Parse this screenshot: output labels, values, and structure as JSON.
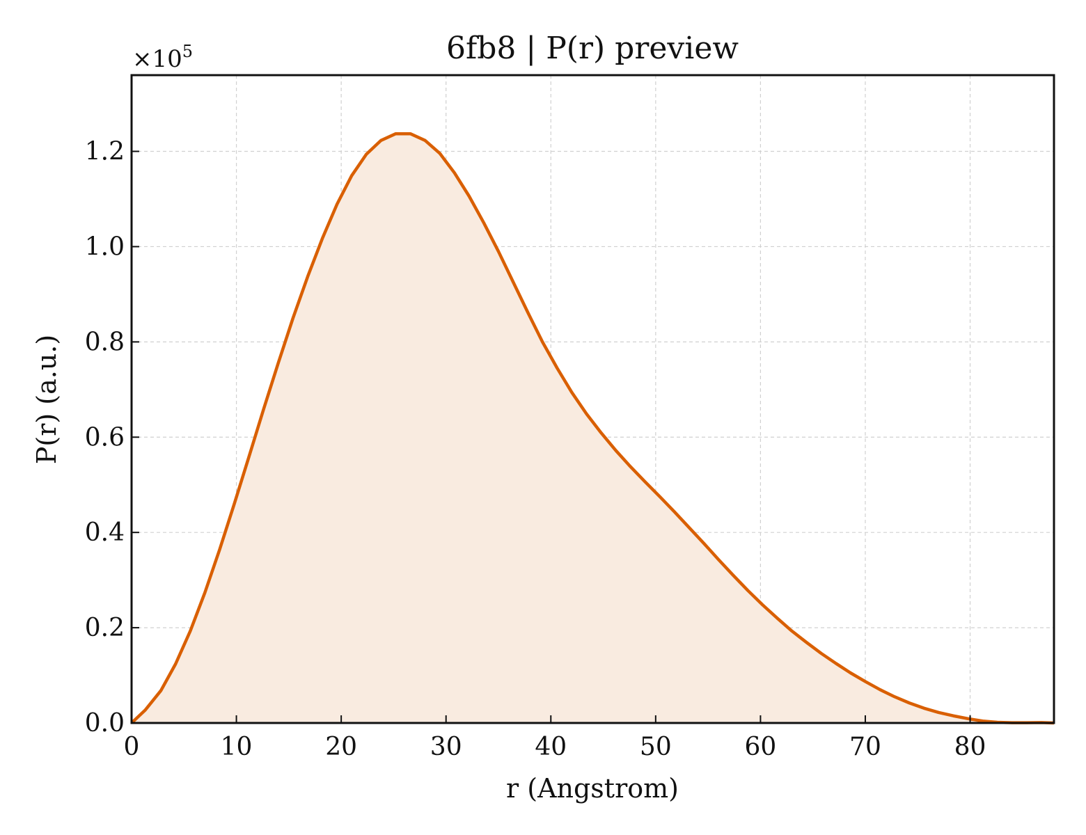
{
  "chart_data": {
    "type": "area",
    "title": "6fb8 | P(r) preview",
    "xlabel": "r (Angstrom)",
    "ylabel": "P(r) (a.u.)",
    "y_multiplier_text": "×10",
    "y_multiplier_exponent": "5",
    "xlim": [
      0,
      88
    ],
    "ylim": [
      0,
      1.36
    ],
    "xticks": [
      0,
      10,
      20,
      30,
      40,
      50,
      60,
      70,
      80
    ],
    "yticks": [
      0.0,
      0.2,
      0.4,
      0.6,
      0.8,
      1.0,
      1.2
    ],
    "xtick_labels": [
      "0",
      "10",
      "20",
      "30",
      "40",
      "50",
      "60",
      "70",
      "80"
    ],
    "ytick_labels": [
      "0.0",
      "0.2",
      "0.4",
      "0.6",
      "0.8",
      "1.0",
      "1.2"
    ],
    "grid": true,
    "colors": {
      "line": "#d95f02",
      "fill": "#f9ebe0",
      "grid": "#d0d0d0",
      "axes": "#111111"
    },
    "series": [
      {
        "x": [
          0,
          1.3,
          2.8,
          4.2,
          5.6,
          7.0,
          8.4,
          9.8,
          11.2,
          12.6,
          14.0,
          15.4,
          16.8,
          18.2,
          19.6,
          21.0,
          22.4,
          23.8,
          25.2,
          26.6,
          28.0,
          29.4,
          30.8,
          32.2,
          33.6,
          35.0,
          36.4,
          37.8,
          39.2,
          40.6,
          42.0,
          43.4,
          44.8,
          46.2,
          47.6,
          49.0,
          50.4,
          51.8,
          53.2,
          54.6,
          56.0,
          57.4,
          58.8,
          60.2,
          61.6,
          63.0,
          64.4,
          65.8,
          67.2,
          68.6,
          70.0,
          71.4,
          72.8,
          74.2,
          75.6,
          77.0,
          78.4,
          79.8,
          81.2,
          82.6,
          84.0,
          85.4,
          86.8,
          88.0
        ],
        "values": [
          0.0,
          0.027,
          0.068,
          0.124,
          0.193,
          0.274,
          0.364,
          0.46,
          0.559,
          0.659,
          0.756,
          0.85,
          0.937,
          1.017,
          1.089,
          1.149,
          1.194,
          1.223,
          1.237,
          1.237,
          1.223,
          1.196,
          1.155,
          1.106,
          1.05,
          0.99,
          0.926,
          0.862,
          0.8,
          0.745,
          0.694,
          0.649,
          0.609,
          0.572,
          0.538,
          0.506,
          0.475,
          0.443,
          0.41,
          0.377,
          0.343,
          0.31,
          0.278,
          0.248,
          0.22,
          0.193,
          0.169,
          0.146,
          0.125,
          0.105,
          0.087,
          0.07,
          0.055,
          0.042,
          0.031,
          0.022,
          0.015,
          0.009,
          0.004,
          0.0015,
          0.0005,
          0.0005,
          0.001,
          0.0
        ]
      }
    ]
  }
}
